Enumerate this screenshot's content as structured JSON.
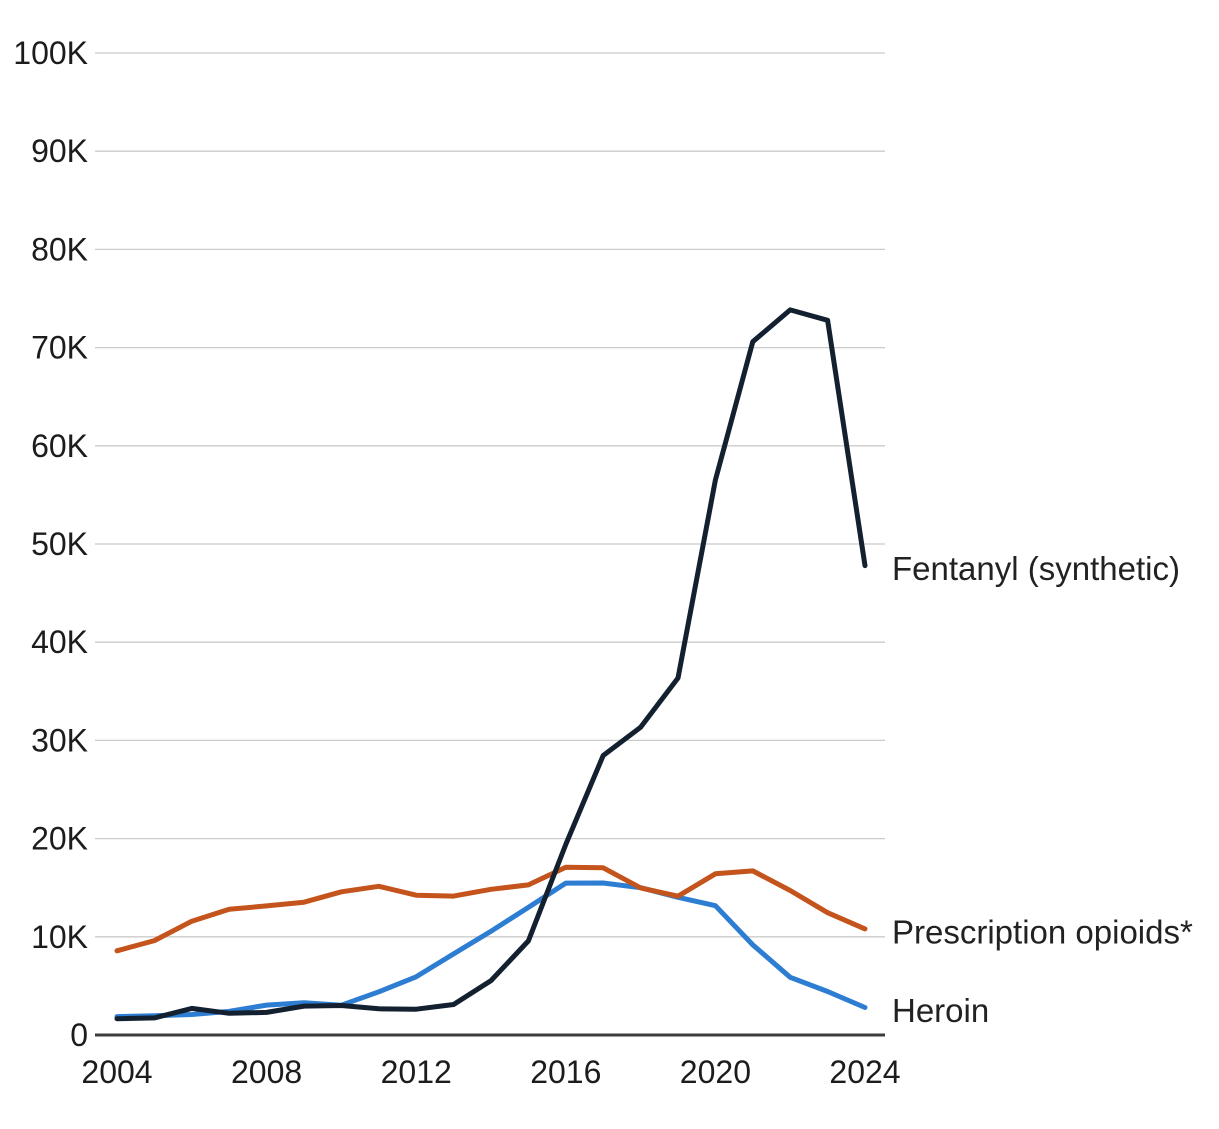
{
  "chart_data": {
    "type": "line",
    "x": [
      2004,
      2005,
      2006,
      2007,
      2008,
      2009,
      2010,
      2011,
      2012,
      2013,
      2014,
      2015,
      2016,
      2017,
      2018,
      2019,
      2020,
      2021,
      2022,
      2023,
      2024
    ],
    "series": [
      {
        "name": "Fentanyl (synthetic)",
        "color": "#13202f",
        "values": [
          1664,
          1742,
          2707,
          2213,
          2306,
          2946,
          3007,
          2666,
          2628,
          3105,
          5544,
          9580,
          19413,
          28466,
          31335,
          36359,
          56516,
          70601,
          73838,
          72776,
          47800
        ]
      },
      {
        "name": "Prescription opioids*",
        "color": "#c4531c",
        "values": [
          8577,
          9612,
          11589,
          12796,
          13149,
          13523,
          14583,
          15140,
          14240,
          14145,
          14838,
          15281,
          17087,
          17029,
          14975,
          14139,
          16416,
          16706,
          14716,
          12450,
          10800
        ]
      },
      {
        "name": "Heroin",
        "color": "#2d7dd2",
        "values": [
          1878,
          1960,
          2088,
          2399,
          3041,
          3278,
          3036,
          4397,
          5925,
          8257,
          10574,
          12989,
          15469,
          15482,
          14996,
          14019,
          13165,
          9173,
          5871,
          4434,
          2800
        ]
      }
    ],
    "y_ticks": [
      {
        "value": 0,
        "label": "0"
      },
      {
        "value": 10000,
        "label": "10K"
      },
      {
        "value": 20000,
        "label": "20K"
      },
      {
        "value": 30000,
        "label": "30K"
      },
      {
        "value": 40000,
        "label": "40K"
      },
      {
        "value": 50000,
        "label": "50K"
      },
      {
        "value": 60000,
        "label": "60K"
      },
      {
        "value": 70000,
        "label": "70K"
      },
      {
        "value": 80000,
        "label": "80K"
      },
      {
        "value": 90000,
        "label": "90K"
      },
      {
        "value": 100000,
        "label": "100K"
      }
    ],
    "x_ticks": [
      {
        "value": 2004,
        "label": "2004"
      },
      {
        "value": 2008,
        "label": "2008"
      },
      {
        "value": 2012,
        "label": "2012"
      },
      {
        "value": 2016,
        "label": "2016"
      },
      {
        "value": 2020,
        "label": "2020"
      },
      {
        "value": 2024,
        "label": "2024"
      }
    ],
    "ylim": [
      0,
      100000
    ],
    "grid": true,
    "legend_position": "inline-right",
    "colors": {
      "gridline": "#cbcbcb",
      "axis": "#3c3c3c",
      "tick_text": "#1c1c1c",
      "label_text": "#222222"
    }
  }
}
